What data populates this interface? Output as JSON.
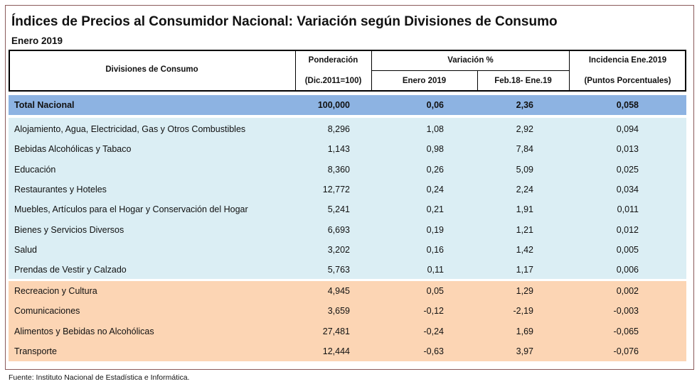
{
  "header": {
    "title": "Índices de Precios al Consumidor Nacional: Variación según Divisiones de Consumo",
    "subtitle": "Enero 2019"
  },
  "table": {
    "columns": {
      "division": "Divisiones de Consumo",
      "ponderacion": [
        "Ponderación",
        "(Dic.2011=100)"
      ],
      "variacion": "Variación %",
      "enero": "Enero 2019",
      "anual": "Feb.18- Ene.19",
      "incidencia": [
        "Incidencia Ene.2019",
        "(Puntos Porcentuales)"
      ]
    },
    "total": [
      "Total Nacional",
      "100,000",
      "0,06",
      "2,36",
      "0,058"
    ],
    "groups": [
      [
        [
          "Alojamiento, Agua, Electricidad, Gas y Otros Combustibles",
          "8,296",
          "1,08",
          "2,92",
          "0,094"
        ],
        [
          "Bebidas Alcohólicas y Tabaco",
          "1,143",
          "0,98",
          "7,84",
          "0,013"
        ],
        [
          "Educación",
          "8,360",
          "0,26",
          "5,09",
          "0,025"
        ],
        [
          "Restaurantes y Hoteles",
          "12,772",
          "0,24",
          "2,24",
          "0,034"
        ],
        [
          "Muebles, Artículos para el Hogar y Conservación del Hogar",
          "5,241",
          "0,21",
          "1,91",
          "0,011"
        ],
        [
          "Bienes y Servicios Diversos",
          "6,693",
          "0,19",
          "1,21",
          "0,012"
        ],
        [
          "Salud",
          "3,202",
          "0,16",
          "1,42",
          "0,005"
        ],
        [
          "Prendas de Vestir y Calzado",
          "5,763",
          "0,11",
          "1,17",
          "0,006"
        ]
      ],
      [
        [
          "Recreacion y Cultura",
          "4,945",
          "0,05",
          "1,29",
          "0,002"
        ],
        [
          "Comunicaciones",
          "3,659",
          "-0,12",
          "-2,19",
          "-0,003"
        ],
        [
          "Alimentos y Bebidas no Alcohólicas",
          "27,481",
          "-0,24",
          "1,69",
          "-0,065"
        ],
        [
          "Transporte",
          "12,444",
          "-0,63",
          "3,97",
          "-0,076"
        ]
      ]
    ]
  },
  "footer": {
    "source": "Fuente: Instituto Nacional de Estadística e Informática."
  }
}
